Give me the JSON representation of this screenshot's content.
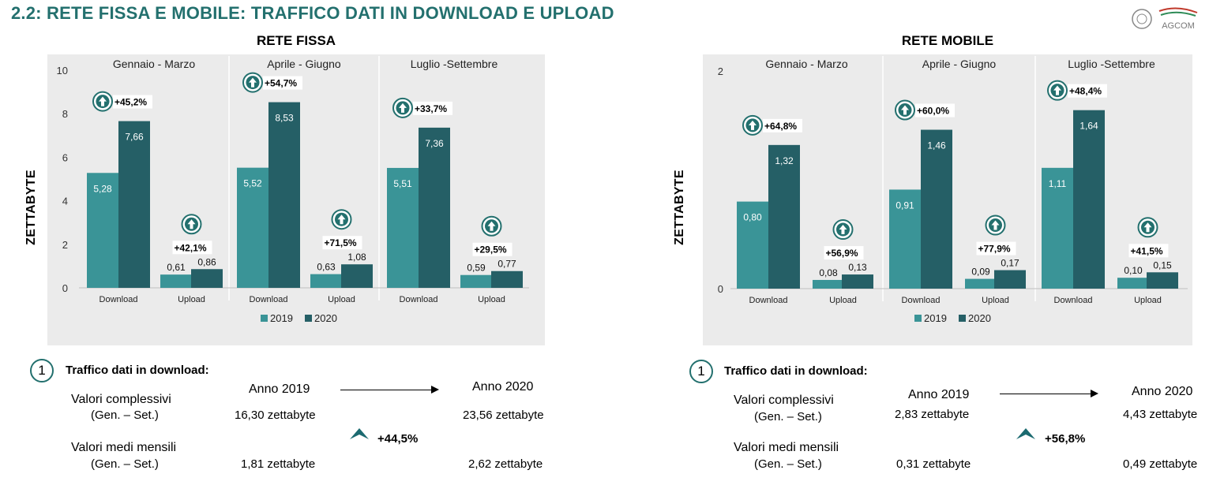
{
  "page": {
    "title": "2.2: RETE FISSA E MOBILE: TRAFFICO DATI IN DOWNLOAD E UPLOAD",
    "logo_text": "AGCOM",
    "accent_color": "#23706e"
  },
  "chart_data": [
    {
      "type": "bar",
      "title": "RETE FISSA",
      "ylabel": "ZETTABYTE",
      "ylim": [
        0,
        10
      ],
      "yticks": [
        "0",
        "2",
        "4",
        "6",
        "8",
        "10"
      ],
      "grid": false,
      "legend": "bottom",
      "groups": [
        {
          "label": "Gennaio - Marzo",
          "bars": [
            {
              "label": "Download",
              "v2019": 5.28,
              "v2020": 7.66,
              "l2019": "5,28",
              "l2020": "7,66",
              "growth": "+45,2%"
            },
            {
              "label": "Upload",
              "v2019": 0.61,
              "v2020": 0.86,
              "l2019": "0,61",
              "l2020": "0,86",
              "growth": "+42,1%"
            }
          ]
        },
        {
          "label": "Aprile - Giugno",
          "bars": [
            {
              "label": "Download",
              "v2019": 5.52,
              "v2020": 8.53,
              "l2019": "5,52",
              "l2020": "8,53",
              "growth": "+54,7%"
            },
            {
              "label": "Upload",
              "v2019": 0.63,
              "v2020": 1.08,
              "l2019": "0,63",
              "l2020": "1,08",
              "growth": "+71,5%"
            }
          ]
        },
        {
          "label": "Luglio -Settembre",
          "bars": [
            {
              "label": "Download",
              "v2019": 5.51,
              "v2020": 7.36,
              "l2019": "5,51",
              "l2020": "7,36",
              "growth": "+33,7%"
            },
            {
              "label": "Upload",
              "v2019": 0.59,
              "v2020": 0.77,
              "l2019": "0,59",
              "l2020": "0,77",
              "growth": "+29,5%"
            }
          ]
        }
      ],
      "series": [
        {
          "name": "2019",
          "color": "#3a9497"
        },
        {
          "name": "2020",
          "color": "#255f66"
        }
      ]
    },
    {
      "type": "bar",
      "title": "RETE MOBILE",
      "ylabel": "ZETTABYTE",
      "ylim": [
        0,
        2
      ],
      "yticks": [
        "0",
        "2"
      ],
      "grid": false,
      "legend": "bottom",
      "groups": [
        {
          "label": "Gennaio - Marzo",
          "bars": [
            {
              "label": "Download",
              "v2019": 0.8,
              "v2020": 1.32,
              "l2019": "0,80",
              "l2020": "1,32",
              "growth": "+64,8%"
            },
            {
              "label": "Upload",
              "v2019": 0.08,
              "v2020": 0.13,
              "l2019": "0,08",
              "l2020": "0,13",
              "growth": "+56,9%"
            }
          ]
        },
        {
          "label": "Aprile - Giugno",
          "bars": [
            {
              "label": "Download",
              "v2019": 0.91,
              "v2020": 1.46,
              "l2019": "0,91",
              "l2020": "1,46",
              "growth": "+60,0%"
            },
            {
              "label": "Upload",
              "v2019": 0.09,
              "v2020": 0.17,
              "l2019": "0,09",
              "l2020": "0,17",
              "growth": "+77,9%"
            }
          ]
        },
        {
          "label": "Luglio -Settembre",
          "bars": [
            {
              "label": "Download",
              "v2019": 1.11,
              "v2020": 1.64,
              "l2019": "1,11",
              "l2020": "1,64",
              "growth": "+48,4%"
            },
            {
              "label": "Upload",
              "v2019": 0.1,
              "v2020": 0.15,
              "l2019": "0,10",
              "l2020": "0,15",
              "growth": "+41,5%"
            }
          ]
        }
      ],
      "series": [
        {
          "name": "2019",
          "color": "#3a9497"
        },
        {
          "name": "2020",
          "color": "#255f66"
        }
      ]
    }
  ],
  "summaries": [
    {
      "number": "1",
      "heading": "Traffico dati in download:",
      "year_a": "Anno 2019",
      "year_b": "Anno 2020",
      "row1_label": "Valori complessivi",
      "row1_sub": "(Gen. – Set.)",
      "row1_a": "16,30 zettabyte",
      "row1_b": "23,56 zettabyte",
      "growth": "+44,5%",
      "row2_label": "Valori medi mensili",
      "row2_sub": "(Gen. – Set.)",
      "row2_a": "1,81 zettabyte",
      "row2_b": "2,62 zettabyte"
    },
    {
      "number": "1",
      "heading": "Traffico dati in download:",
      "year_a": "Anno 2019",
      "year_b": "Anno 2020",
      "row1_label": "Valori complessivi",
      "row1_sub": "(Gen. – Set.)",
      "row1_a": "2,83 zettabyte",
      "row1_b": "4,43 zettabyte",
      "growth": "+56,8%",
      "row2_label": "Valori medi mensili",
      "row2_sub": "(Gen. – Set.)",
      "row2_a": "0,31 zettabyte",
      "row2_b": "0,49 zettabyte"
    }
  ]
}
